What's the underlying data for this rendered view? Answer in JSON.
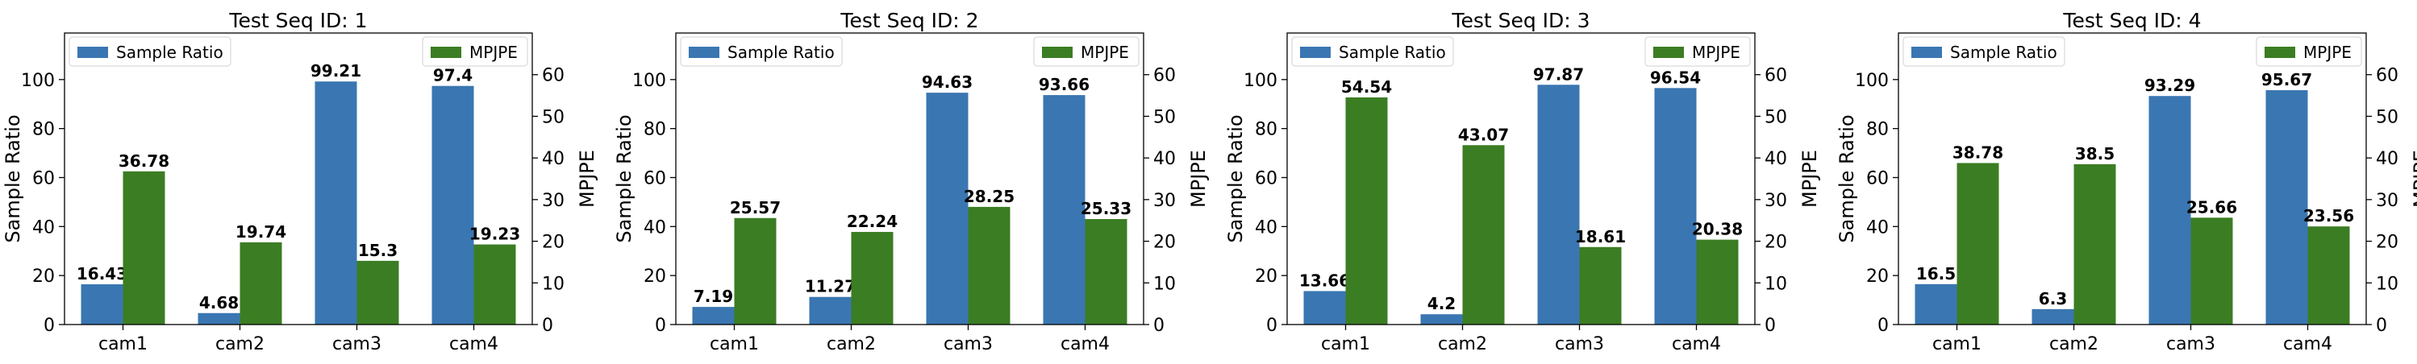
{
  "chart_data": [
    {
      "type": "bar",
      "title": "Test Seq ID: 1",
      "categories": [
        "cam1",
        "cam2",
        "cam3",
        "cam4"
      ],
      "ylabel": "Sample Ratio",
      "y2label": "MPJPE",
      "ylim": [
        0,
        119
      ],
      "y2lim": [
        0,
        70
      ],
      "yticks": [
        0,
        20,
        40,
        60,
        80,
        100
      ],
      "y2ticks": [
        0,
        10,
        20,
        30,
        40,
        50,
        60
      ],
      "series": [
        {
          "name": "Sample Ratio",
          "axis": "left",
          "color": "#3a76b1",
          "values": [
            16.43,
            4.68,
            99.21,
            97.4
          ],
          "labels": [
            "16.43",
            "4.68",
            "99.21",
            "97.4"
          ]
        },
        {
          "name": "MPJPE",
          "axis": "right",
          "color": "#3b7d23",
          "values": [
            36.78,
            19.74,
            15.3,
            19.23
          ],
          "labels": [
            "36.78",
            "19.74",
            "15.3",
            "19.23"
          ]
        }
      ],
      "legend": {
        "left": "top-left",
        "right": "top-right"
      }
    },
    {
      "type": "bar",
      "title": "Test Seq ID: 2",
      "categories": [
        "cam1",
        "cam2",
        "cam3",
        "cam4"
      ],
      "ylabel": "Sample Ratio",
      "y2label": "MPJPE",
      "ylim": [
        0,
        119
      ],
      "y2lim": [
        0,
        70
      ],
      "yticks": [
        0,
        20,
        40,
        60,
        80,
        100
      ],
      "y2ticks": [
        0,
        10,
        20,
        30,
        40,
        50,
        60
      ],
      "series": [
        {
          "name": "Sample Ratio",
          "axis": "left",
          "color": "#3a76b1",
          "values": [
            7.19,
            11.27,
            94.63,
            93.66
          ],
          "labels": [
            "7.19",
            "11.27",
            "94.63",
            "93.66"
          ]
        },
        {
          "name": "MPJPE",
          "axis": "right",
          "color": "#3b7d23",
          "values": [
            25.57,
            22.24,
            28.25,
            25.33
          ],
          "labels": [
            "25.57",
            "22.24",
            "28.25",
            "25.33"
          ]
        }
      ],
      "legend": {
        "left": "top-left",
        "right": "top-right"
      }
    },
    {
      "type": "bar",
      "title": "Test Seq ID: 3",
      "categories": [
        "cam1",
        "cam2",
        "cam3",
        "cam4"
      ],
      "ylabel": "Sample Ratio",
      "y2label": "MPJPE",
      "ylim": [
        0,
        119
      ],
      "y2lim": [
        0,
        70
      ],
      "yticks": [
        0,
        20,
        40,
        60,
        80,
        100
      ],
      "y2ticks": [
        0,
        10,
        20,
        30,
        40,
        50,
        60
      ],
      "series": [
        {
          "name": "Sample Ratio",
          "axis": "left",
          "color": "#3a76b1",
          "values": [
            13.66,
            4.2,
            97.87,
            96.54
          ],
          "labels": [
            "13.66",
            "4.2",
            "97.87",
            "96.54"
          ]
        },
        {
          "name": "MPJPE",
          "axis": "right",
          "color": "#3b7d23",
          "values": [
            54.54,
            43.07,
            18.61,
            20.38
          ],
          "labels": [
            "54.54",
            "43.07",
            "18.61",
            "20.38"
          ]
        }
      ],
      "legend": {
        "left": "top-left",
        "right": "top-right"
      }
    },
    {
      "type": "bar",
      "title": "Test Seq ID: 4",
      "categories": [
        "cam1",
        "cam2",
        "cam3",
        "cam4"
      ],
      "ylabel": "Sample Ratio",
      "y2label": "MPJPE",
      "ylim": [
        0,
        119
      ],
      "y2lim": [
        0,
        70
      ],
      "yticks": [
        0,
        20,
        40,
        60,
        80,
        100
      ],
      "y2ticks": [
        0,
        10,
        20,
        30,
        40,
        50,
        60
      ],
      "series": [
        {
          "name": "Sample Ratio",
          "axis": "left",
          "color": "#3a76b1",
          "values": [
            16.5,
            6.3,
            93.29,
            95.67
          ],
          "labels": [
            "16.5",
            "6.3",
            "93.29",
            "95.67"
          ]
        },
        {
          "name": "MPJPE",
          "axis": "right",
          "color": "#3b7d23",
          "values": [
            38.78,
            38.5,
            25.66,
            23.56
          ],
          "labels": [
            "38.78",
            "38.5",
            "25.66",
            "23.56"
          ]
        }
      ],
      "legend": {
        "left": "top-left",
        "right": "top-right"
      }
    }
  ]
}
